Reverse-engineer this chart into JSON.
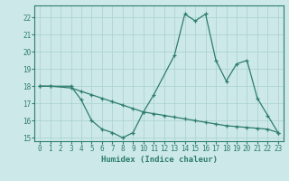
{
  "line1_x": [
    0,
    1,
    3,
    4,
    5,
    6,
    7,
    8,
    9,
    10,
    11,
    13,
    14,
    15,
    16,
    17,
    18,
    19,
    20,
    21,
    22,
    23
  ],
  "line1_y": [
    18,
    18,
    18,
    17.2,
    16.0,
    15.5,
    15.3,
    15.0,
    15.3,
    16.5,
    17.5,
    19.8,
    22.2,
    21.8,
    22.2,
    19.5,
    18.3,
    19.3,
    19.5,
    17.3,
    16.3,
    15.3
  ],
  "line2_x": [
    0,
    1,
    3,
    4,
    5,
    6,
    7,
    8,
    9,
    10,
    11,
    12,
    13,
    14,
    15,
    16,
    17,
    18,
    19,
    20,
    21,
    22,
    23
  ],
  "line2_y": [
    18,
    18,
    17.9,
    17.7,
    17.5,
    17.3,
    17.1,
    16.9,
    16.7,
    16.5,
    16.4,
    16.3,
    16.2,
    16.1,
    16.0,
    15.9,
    15.8,
    15.7,
    15.65,
    15.6,
    15.55,
    15.5,
    15.3
  ],
  "line_color": "#2e7d6e",
  "bg_color": "#cce8e8",
  "grid_color": "#a8d0d0",
  "xlabel": "Humidex (Indice chaleur)",
  "ylim": [
    14.8,
    22.7
  ],
  "xlim": [
    -0.5,
    23.5
  ],
  "yticks": [
    15,
    16,
    17,
    18,
    19,
    20,
    21,
    22
  ],
  "xticks": [
    0,
    1,
    2,
    3,
    4,
    5,
    6,
    7,
    8,
    9,
    10,
    11,
    12,
    13,
    14,
    15,
    16,
    17,
    18,
    19,
    20,
    21,
    22,
    23
  ],
  "tick_fontsize": 5.5,
  "xlabel_fontsize": 6.5
}
